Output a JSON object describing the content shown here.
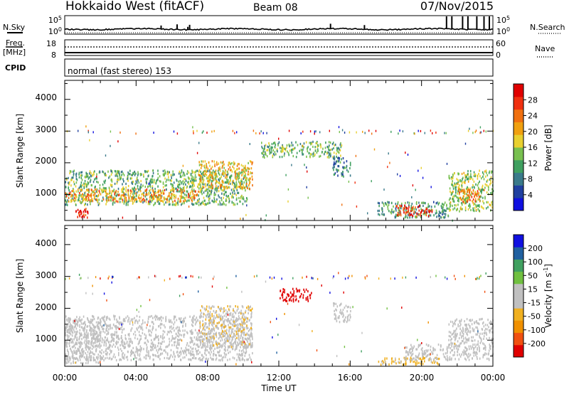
{
  "header": {
    "station": "Hokkaido West (fitACF)",
    "beam": "Beam 08",
    "date": "07/Nov/2015"
  },
  "noise_panel": {
    "left_label": "N.Sky",
    "right_label": "N.Search",
    "tick_top": "10^5",
    "tick_bottom": "10^0"
  },
  "freq_panel": {
    "left_label_1": "Freq.",
    "left_label_2": "[MHz]",
    "left_tick_top": "18",
    "left_tick_bottom": "8",
    "right_label": "Nave",
    "right_tick_top": "60",
    "right_tick_bottom": "0"
  },
  "cpid": {
    "label": "CPID",
    "mode": "normal (fast stereo) 153"
  },
  "power_panel": {
    "ylabel": "Slant Range [km]",
    "yticks": [
      "1000",
      "2000",
      "3000",
      "4000"
    ],
    "colorbar_label": "Power [dB]",
    "colorbar_ticks": [
      "4",
      "8",
      "12",
      "16",
      "20",
      "24",
      "28"
    ],
    "colorbar_colors": [
      "#1010e0",
      "#2040a0",
      "#3a7a8a",
      "#40a060",
      "#78c050",
      "#e8d030",
      "#f0a010",
      "#f07010",
      "#f03010",
      "#e00000"
    ]
  },
  "velocity_panel": {
    "ylabel": "Slant Range [km]",
    "yticks": [
      "1000",
      "2000",
      "3000",
      "4000"
    ],
    "colorbar_label": "Velocity [m s",
    "colorbar_label_sup": "-1",
    "colorbar_label_end": "]",
    "colorbar_ticks": [
      "-200",
      "-100",
      "-50",
      "-15",
      "15",
      "50",
      "100",
      "200"
    ],
    "colorbar_colors": [
      "#e00000",
      "#f05010",
      "#f09000",
      "#f0b020",
      "#c0c0c0",
      "#c0c0c0",
      "#70c040",
      "#40a060",
      "#2060a0",
      "#1010e0"
    ]
  },
  "xaxis": {
    "label": "Time UT",
    "ticks": [
      "00:00",
      "04:00",
      "08:00",
      "12:00",
      "16:00",
      "20:00",
      "00:00"
    ]
  },
  "chart_data": [
    {
      "type": "heatmap",
      "title": "Hokkaido West (fitACF) Beam 08 07/Nov/2015",
      "xlabel": "Time UT",
      "ylabel": "Slant Range [km]",
      "xlim": [
        "00:00",
        "24:00"
      ],
      "ylim": [
        180,
        4600
      ],
      "colorbar": "Power [dB]",
      "clim": [
        0,
        30
      ],
      "regions": [
        {
          "t0": 0.0,
          "t1": 10.2,
          "r0": 700,
          "r1": 1800,
          "value": 12
        },
        {
          "t0": 0.0,
          "t1": 7.5,
          "r0": 800,
          "r1": 1200,
          "value": 20
        },
        {
          "t0": 0.6,
          "t1": 1.3,
          "r0": 300,
          "r1": 600,
          "value": 28
        },
        {
          "t0": 7.5,
          "t1": 10.5,
          "r0": 1200,
          "r1": 2100,
          "value": 18
        },
        {
          "t0": 11.0,
          "t1": 15.5,
          "r0": 2200,
          "r1": 2700,
          "value": 12
        },
        {
          "t0": 15.0,
          "t1": 16.0,
          "r0": 1600,
          "r1": 2200,
          "value": 8
        },
        {
          "t0": 17.5,
          "t1": 21.5,
          "r0": 300,
          "r1": 800,
          "value": 10
        },
        {
          "t0": 18.5,
          "t1": 20.6,
          "r0": 350,
          "r1": 700,
          "value": 26
        },
        {
          "t0": 21.5,
          "t1": 24.0,
          "r0": 500,
          "r1": 1800,
          "value": 14
        },
        {
          "t0": 22.0,
          "t1": 23.5,
          "r0": 800,
          "r1": 1200,
          "value": 22
        }
      ]
    },
    {
      "type": "heatmap",
      "title": "Hokkaido West (fitACF) Beam 08 07/Nov/2015",
      "xlabel": "Time UT",
      "ylabel": "Slant Range [km]",
      "xlim": [
        "00:00",
        "24:00"
      ],
      "ylim": [
        180,
        4600
      ],
      "colorbar": "Velocity [m s-1]",
      "clim": [
        -250,
        250
      ],
      "regions": [
        {
          "t0": 0.0,
          "t1": 10.5,
          "r0": 400,
          "r1": 1800,
          "value": 0
        },
        {
          "t0": 0.0,
          "t1": 2.0,
          "r0": 300,
          "r1": 1700,
          "value": 30
        },
        {
          "t0": 7.5,
          "t1": 10.5,
          "r0": 800,
          "r1": 2100,
          "value": -40
        },
        {
          "t0": 12.0,
          "t1": 13.8,
          "r0": 2250,
          "r1": 2650,
          "value": -220
        },
        {
          "t0": 15.0,
          "t1": 16.0,
          "r0": 1600,
          "r1": 2200,
          "value": 30
        },
        {
          "t0": 17.5,
          "t1": 21.0,
          "r0": 250,
          "r1": 500,
          "value": -60
        },
        {
          "t0": 19.0,
          "t1": 21.5,
          "r0": 400,
          "r1": 900,
          "value": 0
        },
        {
          "t0": 21.5,
          "t1": 24.0,
          "r0": 400,
          "r1": 1700,
          "value": 20
        }
      ]
    }
  ]
}
